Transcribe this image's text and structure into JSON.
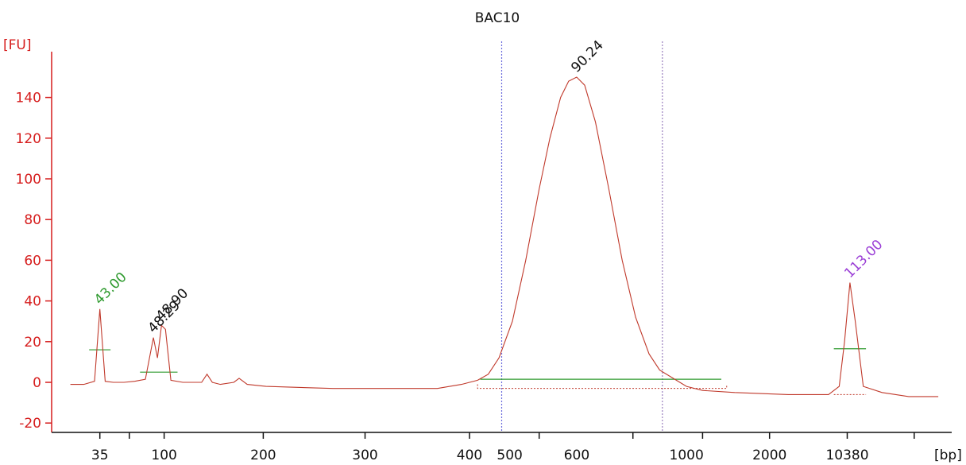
{
  "chart_data": {
    "type": "line",
    "title": "BAC10",
    "ylabel": "[FU]",
    "xlabel": "[bp]",
    "ylim": [
      -22,
      150
    ],
    "y_ticks": [
      -20,
      0,
      20,
      40,
      60,
      80,
      100,
      120,
      140
    ],
    "x_tick_labels": [
      "35",
      "100",
      "200",
      "300",
      "400",
      "500",
      "600",
      "1000",
      "2000",
      "10380"
    ],
    "peak_labels": [
      {
        "text": "43.00",
        "color": "#2e9a2e"
      },
      {
        "text": "48.29",
        "color": "#111111"
      },
      {
        "text": "48.90",
        "color": "#111111"
      },
      {
        "text": "90.24",
        "color": "#111111"
      },
      {
        "text": "113.00",
        "color": "#9b3fd6"
      }
    ],
    "series": [
      {
        "color": "#c0392b",
        "points": [
          [
            32,
            -1
          ],
          [
            37,
            -1
          ],
          [
            41,
            0.5
          ],
          [
            43,
            36
          ],
          [
            45,
            0.5
          ],
          [
            48,
            0
          ],
          [
            52,
            0
          ],
          [
            56,
            0.5
          ],
          [
            60,
            1.5
          ],
          [
            63,
            22
          ],
          [
            64.5,
            12
          ],
          [
            66,
            28
          ],
          [
            67.5,
            26
          ],
          [
            69.5,
            1
          ],
          [
            74,
            0
          ],
          [
            81,
            0
          ],
          [
            83,
            4
          ],
          [
            85,
            0
          ],
          [
            88,
            -1
          ],
          [
            93,
            0
          ],
          [
            95,
            2
          ],
          [
            98,
            -1
          ],
          [
            105,
            -2
          ],
          [
            130,
            -3
          ],
          [
            150,
            -3
          ],
          [
            169,
            -3
          ],
          [
            178,
            -1
          ],
          [
            184,
            1
          ],
          [
            188,
            4
          ],
          [
            192,
            12
          ],
          [
            197,
            30
          ],
          [
            202,
            60
          ],
          [
            207,
            95
          ],
          [
            211,
            120
          ],
          [
            215,
            140
          ],
          [
            218,
            148
          ],
          [
            221,
            150
          ],
          [
            224,
            146
          ],
          [
            228,
            128
          ],
          [
            233,
            95
          ],
          [
            238,
            60
          ],
          [
            243,
            32
          ],
          [
            248,
            14
          ],
          [
            252,
            6
          ],
          [
            257,
            2
          ],
          [
            262,
            -2
          ],
          [
            268,
            -4
          ],
          [
            280,
            -5
          ],
          [
            300,
            -6
          ],
          [
            315,
            -6
          ],
          [
            319,
            -2
          ],
          [
            321,
            20
          ],
          [
            323,
            49
          ],
          [
            325,
            30
          ],
          [
            328,
            -2
          ],
          [
            335,
            -5
          ],
          [
            345,
            -7
          ],
          [
            356,
            -7
          ]
        ]
      }
    ],
    "baselines": [
      {
        "x": [
          39,
          47
        ],
        "y": 16,
        "color": "#2e9a2e"
      },
      {
        "x": [
          58,
          72
        ],
        "y": 5,
        "color": "#2e9a2e"
      },
      {
        "x": [
          185,
          275
        ],
        "y": 1.5,
        "color": "#2e9a2e"
      },
      {
        "x": [
          317,
          329
        ],
        "y": 16.5,
        "color": "#2e9a2e"
      }
    ],
    "region_markers": [
      {
        "x": 193,
        "color": "#6b6bdc"
      },
      {
        "x": 253,
        "color": "#9a7fbf"
      }
    ]
  }
}
